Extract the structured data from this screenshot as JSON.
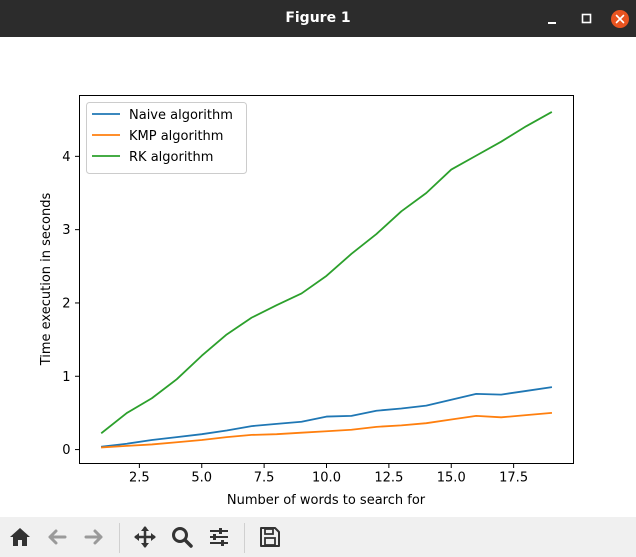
{
  "window": {
    "title": "Figure 1",
    "controls": {
      "minimize_icon": "minimize-icon",
      "maximize_icon": "maximize-icon",
      "close_icon": "close-icon"
    }
  },
  "toolbar": {
    "tools": [
      "home-icon",
      "back-arrow-icon",
      "forward-arrow-icon",
      "pan-icon",
      "zoom-icon",
      "configure-subplots-icon",
      "save-icon"
    ]
  },
  "chart_data": {
    "type": "line",
    "title": "",
    "xlabel": "Number of words to search for",
    "ylabel": "Time execution in seconds",
    "x": [
      1,
      2,
      3,
      4,
      5,
      6,
      7,
      8,
      9,
      10,
      11,
      12,
      13,
      14,
      15,
      16,
      17,
      18,
      19
    ],
    "xlim": [
      0.1,
      19.9
    ],
    "ylim": [
      -0.19,
      4.83
    ],
    "xticks": [
      2.5,
      5.0,
      7.5,
      10.0,
      12.5,
      15.0,
      17.5
    ],
    "xtick_labels": [
      "2.5",
      "5.0",
      "7.5",
      "10.0",
      "12.5",
      "15.0",
      "17.5"
    ],
    "yticks": [
      0,
      1,
      2,
      3,
      4
    ],
    "ytick_labels": [
      "0",
      "1",
      "2",
      "3",
      "4"
    ],
    "grid": false,
    "legend_position": "top-left",
    "series": [
      {
        "name": "Naive algorithm",
        "color": "#1f77b4",
        "values": [
          0.04,
          0.08,
          0.13,
          0.17,
          0.21,
          0.26,
          0.32,
          0.35,
          0.38,
          0.45,
          0.46,
          0.53,
          0.56,
          0.6,
          0.68,
          0.76,
          0.75,
          0.8,
          0.85
        ]
      },
      {
        "name": "KMP algorithm",
        "color": "#ff7f0e",
        "values": [
          0.03,
          0.05,
          0.07,
          0.1,
          0.13,
          0.17,
          0.2,
          0.21,
          0.23,
          0.25,
          0.27,
          0.31,
          0.33,
          0.36,
          0.41,
          0.46,
          0.44,
          0.47,
          0.5
        ]
      },
      {
        "name": "RK algorithm",
        "color": "#2ca02c",
        "values": [
          0.23,
          0.5,
          0.7,
          0.96,
          1.28,
          1.57,
          1.8,
          1.97,
          2.13,
          2.37,
          2.67,
          2.94,
          3.25,
          3.5,
          3.82,
          4.01,
          4.2,
          4.41,
          4.6
        ]
      }
    ]
  }
}
